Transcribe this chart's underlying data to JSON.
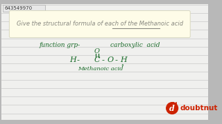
{
  "outer_bg": "#b8b8b8",
  "panel_bg": "#faf8e8",
  "panel_border": "#ccccaa",
  "title_text": "Give the structural formula of each of the Methanoic acid",
  "title_color": "#888880",
  "underline_color": "#888880",
  "line_color": "#c8c8c8",
  "green": "#1a6b2a",
  "text1": "function grp-",
  "text2": "carboxylic  acid",
  "label": "Methanoic acid",
  "id_text": "643549970",
  "id_box_color": "#e0e0e0",
  "doubtnut_color": "#cc2200",
  "doubtnut_text": "doubtnut"
}
